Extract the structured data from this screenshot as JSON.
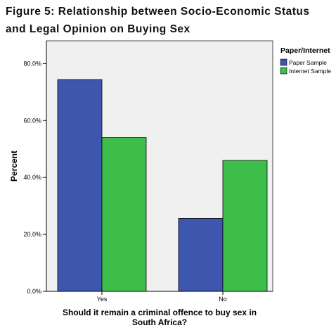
{
  "figure_title_lines": [
    "Figure 5: Relationship between Socio-Economic Status",
    "and Legal Opinion on Buying Sex"
  ],
  "colors": {
    "paper": "#3F56AE",
    "internet": "#3DBE4A",
    "plot_bg": "#F0F0F0",
    "axis": "#000000"
  },
  "chart_data": {
    "type": "bar",
    "title": "",
    "categories": [
      "Yes",
      "No"
    ],
    "series": [
      {
        "name": "Paper Sample",
        "values": [
          74.4,
          25.6
        ]
      },
      {
        "name": "Internet Sample",
        "values": [
          54.0,
          46.0
        ]
      }
    ],
    "ylabel": "Percent",
    "xlabel_lines": [
      "Should it remain a criminal offence to buy sex in",
      "South Africa?"
    ],
    "ylim": [
      0,
      88
    ],
    "yticks": [
      0,
      20,
      40,
      60,
      80
    ],
    "ytick_labels": [
      "0.0%",
      "20.0%",
      "40.0%",
      "60.0%",
      "80.0%"
    ],
    "legend_title": "Paper/Internet",
    "legend_position": "right",
    "grid": false
  }
}
